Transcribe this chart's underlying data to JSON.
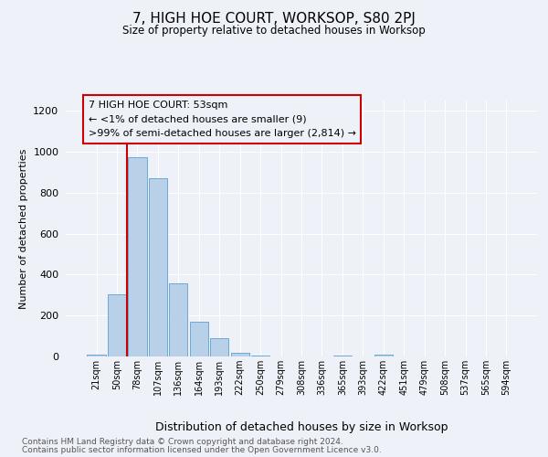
{
  "title": "7, HIGH HOE COURT, WORKSOP, S80 2PJ",
  "subtitle": "Size of property relative to detached houses in Worksop",
  "xlabel": "Distribution of detached houses by size in Worksop",
  "ylabel": "Number of detached properties",
  "footer1": "Contains HM Land Registry data © Crown copyright and database right 2024.",
  "footer2": "Contains public sector information licensed under the Open Government Licence v3.0.",
  "annotation_line1": "7 HIGH HOE COURT: 53sqm",
  "annotation_line2": "← <1% of detached houses are smaller (9)",
  "annotation_line3": ">99% of semi-detached houses are larger (2,814) →",
  "bar_labels": [
    "21sqm",
    "50sqm",
    "78sqm",
    "107sqm",
    "136sqm",
    "164sqm",
    "193sqm",
    "222sqm",
    "250sqm",
    "279sqm",
    "308sqm",
    "336sqm",
    "365sqm",
    "393sqm",
    "422sqm",
    "451sqm",
    "479sqm",
    "508sqm",
    "537sqm",
    "565sqm",
    "594sqm"
  ],
  "bar_values": [
    10,
    305,
    975,
    870,
    355,
    170,
    90,
    20,
    5,
    0,
    0,
    0,
    5,
    0,
    10,
    0,
    0,
    0,
    0,
    0,
    0
  ],
  "bar_color": "#b8d0e8",
  "bar_edge_color": "#6aaad4",
  "red_line_x": 1.5,
  "red_line_color": "#cc0000",
  "annotation_box_edge_color": "#cc0000",
  "background_color": "#eef2f8",
  "ylim": [
    0,
    1250
  ],
  "yticks": [
    0,
    200,
    400,
    600,
    800,
    1000,
    1200
  ]
}
